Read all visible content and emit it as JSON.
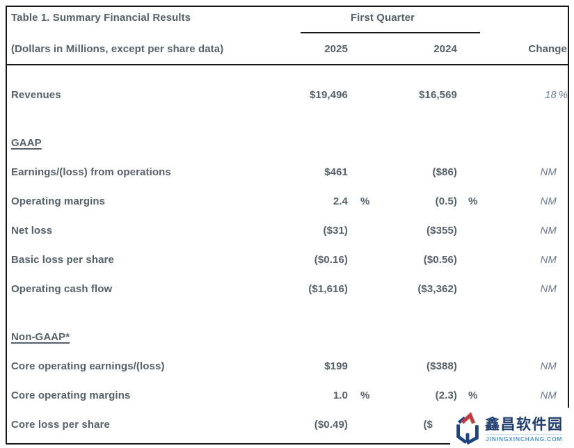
{
  "table": {
    "title": "Table 1. Summary Financial Results",
    "subtitle": "(Dollars in Millions, except per share data)",
    "col_group_label": "First Quarter",
    "columns": {
      "y2025": "2025",
      "y2024": "2024",
      "change": "Change"
    },
    "rows": [
      {
        "type": "data",
        "label": "Revenues",
        "y2025": "$19,496",
        "p2025": "",
        "y2024": "$16,569",
        "p2024": "",
        "change": "18",
        "pchange": "%"
      },
      {
        "type": "section",
        "label": "GAAP"
      },
      {
        "type": "data",
        "label": "Earnings/(loss) from operations",
        "y2025": "$461",
        "p2025": "",
        "y2024": "($86)",
        "p2024": "",
        "change": "NM",
        "pchange": ""
      },
      {
        "type": "data",
        "label": "Operating margins",
        "y2025": "2.4",
        "p2025": "%",
        "y2024": "(0.5)",
        "p2024": "%",
        "change": "NM",
        "pchange": ""
      },
      {
        "type": "data",
        "label": "Net loss",
        "y2025": "($31)",
        "p2025": "",
        "y2024": "($355)",
        "p2024": "",
        "change": "NM",
        "pchange": ""
      },
      {
        "type": "data",
        "label": "Basic loss per share",
        "y2025": "($0.16)",
        "p2025": "",
        "y2024": "($0.56)",
        "p2024": "",
        "change": "NM",
        "pchange": ""
      },
      {
        "type": "data",
        "label": "Operating cash flow",
        "y2025": "($1,616)",
        "p2025": "",
        "y2024": "($3,362)",
        "p2024": "",
        "change": "NM",
        "pchange": ""
      },
      {
        "type": "section",
        "label": "Non-GAAP*"
      },
      {
        "type": "data",
        "label": "Core operating earnings/(loss)",
        "y2025": "$199",
        "p2025": "",
        "y2024": "($388)",
        "p2024": "",
        "change": "NM",
        "pchange": ""
      },
      {
        "type": "data",
        "label": "Core operating margins",
        "y2025": "1.0",
        "p2025": "%",
        "y2024": "(2.3)",
        "p2024": "%",
        "change": "NM",
        "pchange": ""
      },
      {
        "type": "data",
        "label": "Core loss per share",
        "y2025": "($0.49)",
        "p2025": "",
        "y2024": "($",
        "p2024": "",
        "change": "",
        "pchange": "",
        "y2024_obscured": true
      }
    ]
  },
  "watermark": {
    "name": "鑫昌软件园",
    "domain": "JININGXINCHANG.COM",
    "colors": {
      "logo_blue": "#1d4380",
      "logo_red": "#c23b3c",
      "name_blue": "#1c3d6e",
      "domain_blue": "#4f96d5"
    }
  },
  "colors": {
    "text": "#566069",
    "muted_italic": "#707d91",
    "border": "#16181d"
  }
}
